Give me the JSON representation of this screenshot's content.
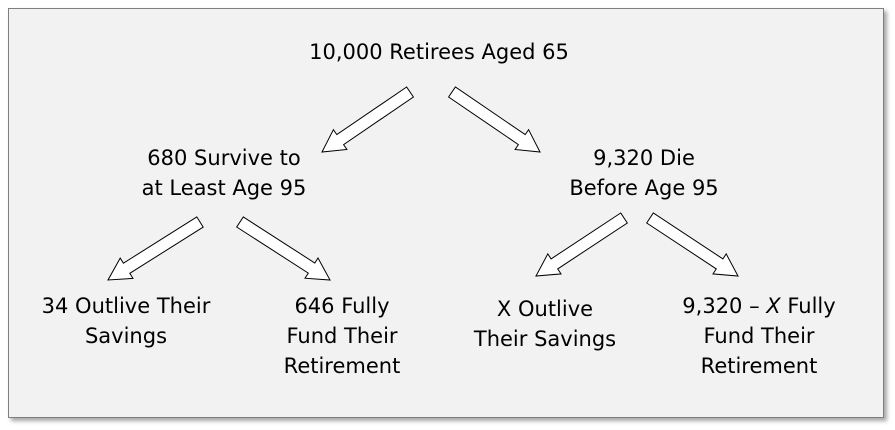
{
  "nodes": {
    "root": {
      "lines": [
        "10,000 Retirees Aged 65"
      ]
    },
    "survive": {
      "lines": [
        "680 Survive to",
        "at Least Age 95"
      ]
    },
    "die": {
      "lines": [
        "9,320 Die",
        "Before Age 95"
      ]
    },
    "survive_outlive": {
      "lines": [
        "34 Outlive Their",
        "Savings"
      ]
    },
    "survive_fund": {
      "lines": [
        "646 Fully",
        "Fund Their",
        "Retirement"
      ]
    },
    "die_outlive": {
      "lines": [
        "X Outlive",
        "Their Savings"
      ]
    },
    "die_fund": {
      "lines": [
        "9,320 – X Fully",
        "Fund Their",
        "Retirement"
      ],
      "emphasis": "X"
    }
  },
  "colors": {
    "background": "#f2f2f2",
    "border": "#7f7f7f",
    "arrow_fill": "#ffffff",
    "arrow_stroke": "#000000",
    "text": "#000000"
  },
  "edges": [
    {
      "from": "root",
      "to": "survive"
    },
    {
      "from": "root",
      "to": "die"
    },
    {
      "from": "survive",
      "to": "survive_outlive"
    },
    {
      "from": "survive",
      "to": "survive_fund"
    },
    {
      "from": "die",
      "to": "die_outlive"
    },
    {
      "from": "die",
      "to": "die_fund"
    }
  ]
}
